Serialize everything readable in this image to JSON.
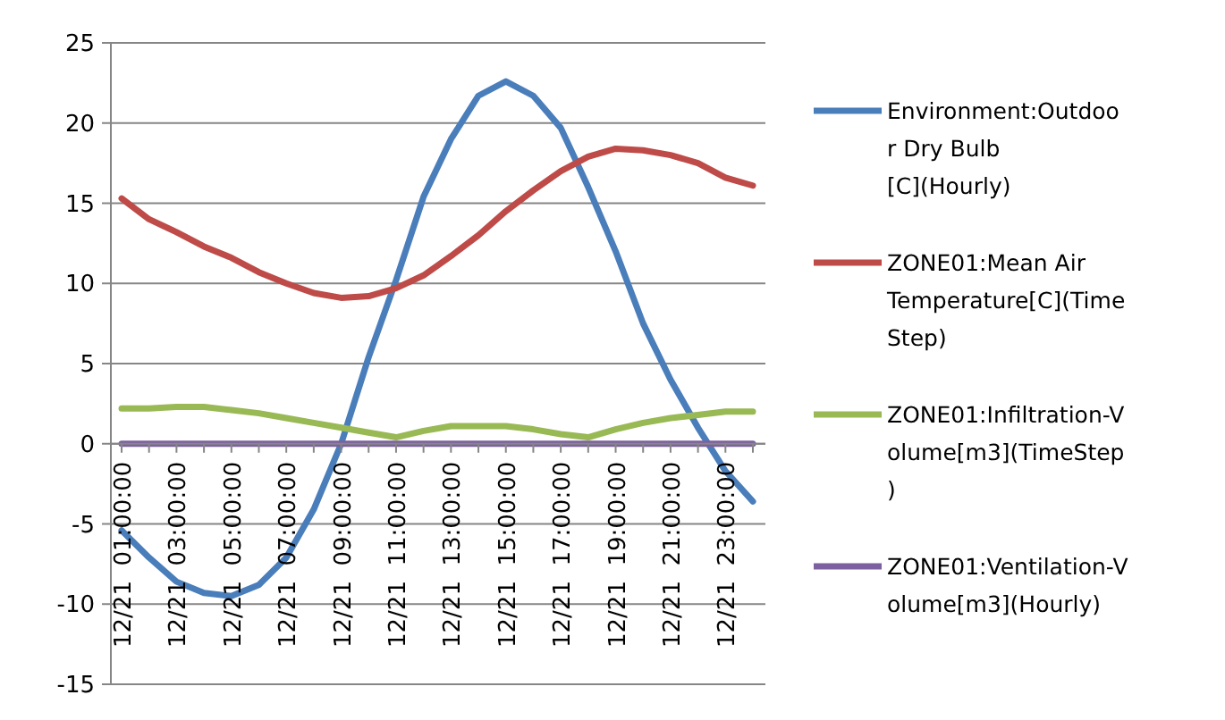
{
  "chart_data": {
    "type": "line",
    "categories": [
      "12/21  01:00:00",
      null,
      "12/21  03:00:00",
      null,
      "12/21  05:00:00",
      null,
      "12/21  07:00:00",
      null,
      "12/21  09:00:00",
      null,
      "12/21  11:00:00",
      null,
      "12/21  13:00:00",
      null,
      "12/21  15:00:00",
      null,
      "12/21  17:00:00",
      null,
      "12/21  19:00:00",
      null,
      "12/21  21:00:00",
      null,
      "12/21  23:00:00",
      null
    ],
    "series": [
      {
        "name": "Environment:Outdoor Dry Bulb [C](Hourly)",
        "color": "#4a7ebb",
        "values": [
          -5.4,
          -7.1,
          -8.6,
          -9.3,
          -9.5,
          -8.8,
          -7.1,
          -4.1,
          0,
          5.4,
          10.2,
          15.4,
          19,
          21.7,
          22.6,
          21.7,
          19.7,
          16,
          12,
          7.5,
          4,
          1,
          -1.7,
          -3.6
        ]
      },
      {
        "name": "ZONE01:Mean Air Temperature[C](TimeStep)",
        "color": "#be4b48",
        "values": [
          15.3,
          14,
          13.2,
          12.3,
          11.6,
          10.7,
          10,
          9.4,
          9.1,
          9.2,
          9.7,
          10.5,
          11.7,
          13,
          14.5,
          15.8,
          17,
          17.9,
          18.4,
          18.3,
          18,
          17.5,
          16.6,
          16.1
        ]
      },
      {
        "name": "ZONE01:Infiltration-Volume[m3](TimeStep)",
        "color": "#98b954",
        "values": [
          2.2,
          2.2,
          2.3,
          2.3,
          2.1,
          1.9,
          1.6,
          1.3,
          1,
          0.7,
          0.4,
          0.8,
          1.1,
          1.1,
          1.1,
          0.9,
          0.6,
          0.4,
          0.9,
          1.3,
          1.6,
          1.8,
          2,
          2
        ]
      },
      {
        "name": "ZONE01:Ventilation-Volume[m3](Hourly)",
        "color": "#7d60a0",
        "values": [
          0,
          0,
          0,
          0,
          0,
          0,
          0,
          0,
          0,
          0,
          0,
          0,
          0,
          0,
          0,
          0,
          0,
          0,
          0,
          0,
          0,
          0,
          0,
          0
        ]
      }
    ],
    "ylim": [
      -15,
      25
    ],
    "yticks": [
      -15,
      -10,
      -5,
      0,
      5,
      10,
      15,
      20,
      25
    ],
    "grid": "y",
    "legend": "right",
    "marker": "none",
    "line_style": "solid"
  }
}
